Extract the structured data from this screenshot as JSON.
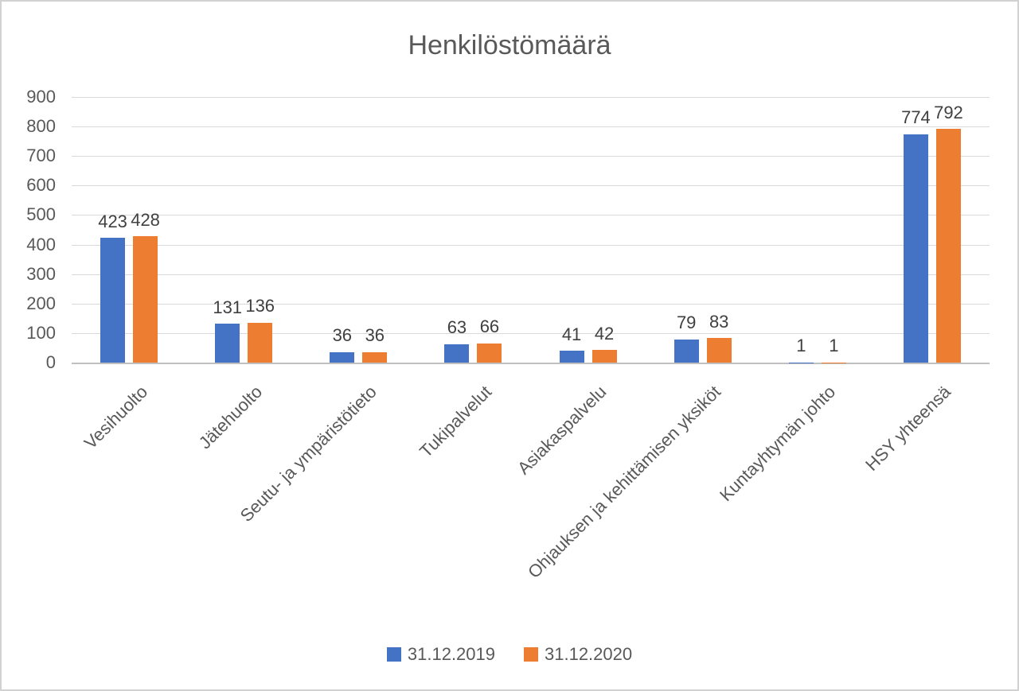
{
  "chart_data": {
    "type": "bar",
    "title": "Henkilöstömäärä",
    "categories": [
      "Vesihuolto",
      "Jätehuolto",
      "Seutu- ja ympäristötieto",
      "Tukipalvelut",
      "Asiakaspalvelu",
      "Ohjauksen ja kehittämisen yksiköt",
      "Kuntayhtymän johto",
      "HSY yhteensä"
    ],
    "series": [
      {
        "name": "31.12.2019",
        "color": "#4472C4",
        "values": [
          423,
          131,
          36,
          63,
          41,
          79,
          1,
          774
        ]
      },
      {
        "name": "31.12.2020",
        "color": "#ED7D31",
        "values": [
          428,
          136,
          36,
          66,
          42,
          83,
          1,
          792
        ]
      }
    ],
    "xlabel": "",
    "ylabel": "",
    "ylim": [
      0,
      900
    ],
    "yticks": [
      0,
      100,
      200,
      300,
      400,
      500,
      600,
      700,
      800,
      900
    ],
    "grid": true,
    "data_labels": true,
    "legend_position": "bottom"
  },
  "colors": {
    "text": "#595959",
    "data_label": "#404040",
    "gridline": "#d9d9d9",
    "axis_line": "#bfbfbf",
    "border": "#d2d2d2",
    "background": "#ffffff"
  }
}
